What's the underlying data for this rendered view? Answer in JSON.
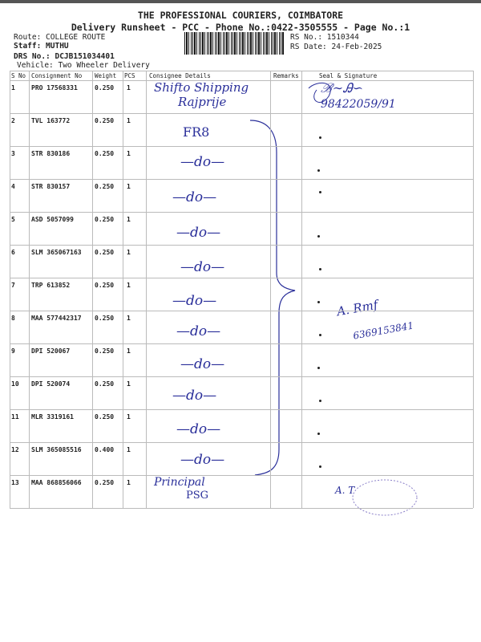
{
  "header": {
    "company": "THE PROFESSIONAL COURIERS, COIMBATORE",
    "subtitle": "Delivery Runsheet - PCC - Phone No.:0422-3505555 - Page No.:1",
    "route": "Route: COLLEGE ROUTE",
    "staff": "Staff: MUTHU",
    "drs_no": "DRS No.: DCJB151034401",
    "vehicle": "Vehicle: Two Wheeler Delivery",
    "rs_no": "RS No.: 1510344",
    "rs_date": "RS Date: 24-Feb-2025"
  },
  "table": {
    "columns": [
      "S No",
      "Consignment No",
      "Weight",
      "PCS",
      "Consignee Details",
      "Remarks",
      "Seal & Signature"
    ],
    "rows": [
      {
        "sno": "1",
        "consignment": "PRO 17568331",
        "weight": "0.250",
        "pcs": "1"
      },
      {
        "sno": "2",
        "consignment": "TVL 163772",
        "weight": "0.250",
        "pcs": "1"
      },
      {
        "sno": "3",
        "consignment": "STR 830186",
        "weight": "0.250",
        "pcs": "1"
      },
      {
        "sno": "4",
        "consignment": "STR 830157",
        "weight": "0.250",
        "pcs": "1"
      },
      {
        "sno": "5",
        "consignment": "ASD 5057099",
        "weight": "0.250",
        "pcs": "1"
      },
      {
        "sno": "6",
        "consignment": "SLM 365067163",
        "weight": "0.250",
        "pcs": "1"
      },
      {
        "sno": "7",
        "consignment": "TRP 613852",
        "weight": "0.250",
        "pcs": "1"
      },
      {
        "sno": "8",
        "consignment": "MAA 577442317",
        "weight": "0.250",
        "pcs": "1"
      },
      {
        "sno": "9",
        "consignment": "DPI 520067",
        "weight": "0.250",
        "pcs": "1"
      },
      {
        "sno": "10",
        "consignment": "DPI 520074",
        "weight": "0.250",
        "pcs": "1"
      },
      {
        "sno": "11",
        "consignment": "MLR 3319161",
        "weight": "0.250",
        "pcs": "1"
      },
      {
        "sno": "12",
        "consignment": "SLM 365085516",
        "weight": "0.400",
        "pcs": "1"
      },
      {
        "sno": "13",
        "consignment": "MAA 868856066",
        "weight": "0.250",
        "pcs": "1"
      }
    ]
  },
  "handwriting": {
    "consignee_1_line1": "Shifto Shipping",
    "consignee_1_line2": "Rajprije",
    "consignee_2": "FR8",
    "ditto": "—do—",
    "consignee_13_line1": "Principal",
    "consignee_13_line2": "PSG",
    "phone_1": "98422059/91",
    "phone_2": "6369153841",
    "ink_color": "#2a2f9a"
  }
}
